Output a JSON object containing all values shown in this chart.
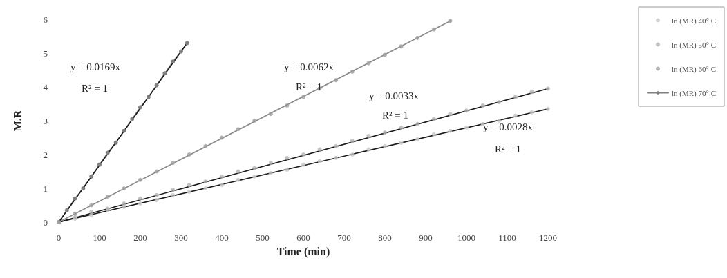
{
  "chart_data": {
    "type": "scatter",
    "xlabel": "Time (min)",
    "ylabel": "M.R",
    "xlim": [
      0,
      1200
    ],
    "xticks": [
      0,
      100,
      200,
      300,
      400,
      500,
      600,
      700,
      800,
      900,
      1000,
      1100,
      1200
    ],
    "ylim": [
      0,
      6
    ],
    "yticks": [
      0,
      1,
      2,
      3,
      4,
      5,
      6
    ],
    "grid": false,
    "legend": "top right",
    "series": [
      {
        "name": "ln (MR) 40° C",
        "marker": "circle",
        "color": "#c8c8c8",
        "x": [
          0,
          40,
          80,
          120,
          160,
          200,
          240,
          280,
          320,
          360,
          400,
          440,
          480,
          520,
          560,
          600,
          640,
          680,
          720,
          760,
          800,
          840,
          880,
          920,
          960,
          1000,
          1040,
          1080,
          1120,
          1160,
          1200
        ],
        "values": [
          0,
          0.1,
          0.2,
          0.35,
          0.45,
          0.55,
          0.65,
          0.8,
          0.9,
          1.0,
          1.1,
          1.25,
          1.35,
          1.45,
          1.55,
          1.7,
          1.8,
          1.9,
          2.0,
          2.15,
          2.25,
          2.35,
          2.45,
          2.6,
          2.7,
          2.8,
          2.9,
          3.0,
          3.15,
          3.25,
          3.35
        ]
      },
      {
        "name": "ln (MR) 50° C",
        "marker": "circle",
        "color": "#b4b4b4",
        "x": [
          40,
          80,
          120,
          160,
          200,
          240,
          280,
          320,
          360,
          400,
          440,
          480,
          520,
          560,
          600,
          640,
          680,
          720,
          760,
          800,
          840,
          880,
          920,
          960,
          1000,
          1040,
          1080,
          1120,
          1160,
          1200
        ],
        "values": [
          0.15,
          0.3,
          0.4,
          0.55,
          0.7,
          0.8,
          0.95,
          1.1,
          1.2,
          1.35,
          1.5,
          1.6,
          1.75,
          1.9,
          2.0,
          2.15,
          2.25,
          2.4,
          2.55,
          2.65,
          2.8,
          2.9,
          3.05,
          3.2,
          3.3,
          3.45,
          3.55,
          3.7,
          3.85,
          3.95
        ]
      },
      {
        "name": "ln (MR) 60° C",
        "marker": "circle",
        "color": "#9c9c9c",
        "x": [
          0,
          40,
          80,
          120,
          160,
          200,
          240,
          280,
          320,
          360,
          400,
          440,
          480,
          520,
          560,
          600,
          640,
          680,
          720,
          760,
          800,
          840,
          880,
          920,
          960
        ],
        "values": [
          0,
          0.25,
          0.5,
          0.75,
          1.0,
          1.25,
          1.5,
          1.75,
          2.0,
          2.25,
          2.5,
          2.75,
          3.0,
          3.2,
          3.45,
          3.7,
          3.95,
          4.2,
          4.45,
          4.7,
          4.95,
          5.2,
          5.45,
          5.7,
          5.95
        ]
      },
      {
        "name": "ln (MR) 70° C",
        "type": "line",
        "marker": "circle",
        "color": "#808080",
        "x": [
          0,
          20,
          40,
          60,
          80,
          100,
          120,
          140,
          160,
          180,
          200,
          220,
          240,
          260,
          280,
          300,
          315
        ],
        "values": [
          0,
          0.35,
          0.7,
          1.0,
          1.35,
          1.7,
          2.05,
          2.35,
          2.7,
          3.05,
          3.4,
          3.7,
          4.05,
          4.4,
          4.75,
          5.05,
          5.3
        ]
      },
      {
        "type": "line",
        "marker": "none",
        "color": "#1a1a1a",
        "x": [
          0,
          1200
        ],
        "values": [
          0,
          3.35
        ]
      },
      {
        "type": "line",
        "marker": "none",
        "color": "#1a1a1a",
        "x": [
          0,
          1200
        ],
        "values": [
          0,
          3.95
        ]
      },
      {
        "type": "line",
        "marker": "none",
        "color": "#8a8a8a",
        "x": [
          0,
          960
        ],
        "values": [
          0,
          5.95
        ]
      },
      {
        "type": "line",
        "marker": "none",
        "color": "#1a1a1a",
        "x": [
          0,
          315
        ],
        "values": [
          0,
          5.3
        ]
      }
    ],
    "annotations": [
      "y = 0.0169x",
      "R² = 1",
      "y = 0.0062x",
      "R² = 1",
      "y = 0.0033x",
      "R² = 1",
      "y = 0.0028x",
      "R² = 1"
    ]
  }
}
